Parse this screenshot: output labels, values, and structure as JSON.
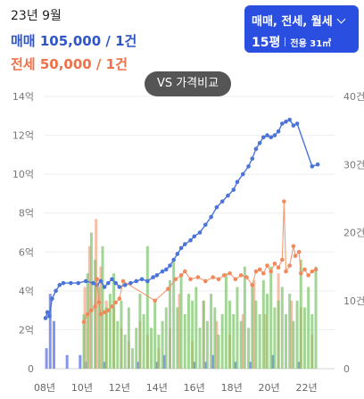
{
  "header": {
    "date": "23년 9월",
    "sale_price": "매매 105,000 / 1건",
    "jeonse_price": "전세 50,000 / 1건"
  },
  "type_selector": {
    "label": "매매, 전세, 월세",
    "pyeong": "15평",
    "area": "전용 31㎡"
  },
  "compare_button": "VS 가격비교",
  "colors": {
    "sale": "#4a74d8",
    "jeonse": "#f08a5d",
    "volume_green": "#7cc46a",
    "volume_orange": "#f4a98a",
    "volume_blue": "#6f82e8",
    "selector_bg": "#2a4ee0"
  },
  "icons": {
    "dropdown": "chevron-down-icon"
  },
  "chart_data": {
    "type": "line",
    "x_tick_labels": [
      "08년",
      "10년",
      "12년",
      "14년",
      "16년",
      "18년",
      "20년",
      "22년"
    ],
    "y_left_tick_labels": [
      "0",
      "2억",
      "4억",
      "6억",
      "8억",
      "10억",
      "12억",
      "14억"
    ],
    "y_right_tick_labels": [
      "0",
      "10건",
      "20건",
      "30건",
      "40건"
    ],
    "y_left_range": [
      0,
      14
    ],
    "y_right_range": [
      0,
      40
    ],
    "x_range": [
      2008,
      2023.5
    ],
    "y_left_unit": "억",
    "grid": "horizontal",
    "series": [
      {
        "role": "sale",
        "points": [
          [
            2008.05,
            2.6
          ],
          [
            2008.15,
            2.9
          ],
          [
            2008.25,
            2.7
          ],
          [
            2008.4,
            3.6
          ],
          [
            2008.6,
            4.0
          ],
          [
            2008.8,
            4.3
          ],
          [
            2009.0,
            4.4
          ],
          [
            2009.4,
            4.4
          ],
          [
            2009.8,
            4.4
          ],
          [
            2010.2,
            4.5
          ],
          [
            2010.6,
            4.4
          ],
          [
            2010.8,
            4.3
          ],
          [
            2011.0,
            4.5
          ],
          [
            2011.2,
            4.2
          ],
          [
            2011.4,
            4.4
          ],
          [
            2011.6,
            4.6
          ],
          [
            2011.8,
            4.4
          ],
          [
            2012.0,
            4.2
          ],
          [
            2012.3,
            4.3
          ],
          [
            2012.6,
            4.4
          ],
          [
            2012.9,
            4.5
          ],
          [
            2013.2,
            4.6
          ],
          [
            2013.5,
            4.5
          ],
          [
            2013.8,
            4.7
          ],
          [
            2014.0,
            4.8
          ],
          [
            2014.3,
            5.0
          ],
          [
            2014.5,
            5.1
          ],
          [
            2014.7,
            5.3
          ],
          [
            2014.9,
            5.6
          ],
          [
            2015.1,
            5.9
          ],
          [
            2015.3,
            6.2
          ],
          [
            2015.5,
            6.4
          ],
          [
            2015.8,
            6.6
          ],
          [
            2016.0,
            6.8
          ],
          [
            2016.3,
            7.0
          ],
          [
            2016.6,
            7.4
          ],
          [
            2016.9,
            7.8
          ],
          [
            2017.2,
            8.3
          ],
          [
            2017.5,
            8.6
          ],
          [
            2017.8,
            8.9
          ],
          [
            2018.1,
            9.2
          ],
          [
            2018.3,
            9.6
          ],
          [
            2018.6,
            10.0
          ],
          [
            2018.9,
            10.4
          ],
          [
            2019.1,
            10.8
          ],
          [
            2019.3,
            11.3
          ],
          [
            2019.5,
            11.6
          ],
          [
            2019.7,
            11.9
          ],
          [
            2019.9,
            12.0
          ],
          [
            2020.1,
            11.9
          ],
          [
            2020.3,
            12.0
          ],
          [
            2020.5,
            12.2
          ],
          [
            2020.7,
            12.6
          ],
          [
            2020.9,
            12.7
          ],
          [
            2021.1,
            12.8
          ],
          [
            2021.3,
            12.5
          ],
          [
            2021.5,
            12.6
          ],
          [
            2022.3,
            10.4
          ],
          [
            2022.6,
            10.5
          ]
        ]
      },
      {
        "role": "jeonse",
        "points": [
          [
            2010.1,
            2.4
          ],
          [
            2010.3,
            2.8
          ],
          [
            2010.5,
            3.0
          ],
          [
            2010.7,
            3.2
          ],
          [
            2010.8,
            4.6
          ],
          [
            2010.9,
            3.4
          ],
          [
            2011.0,
            2.8
          ],
          [
            2011.2,
            2.9
          ],
          [
            2011.4,
            3.0
          ],
          [
            2011.6,
            3.2
          ],
          [
            2011.8,
            3.4
          ],
          [
            2012.0,
            3.6
          ],
          [
            2012.2,
            4.5
          ],
          [
            2013.9,
            3.5
          ],
          [
            2014.6,
            4.1
          ],
          [
            2015.0,
            4.6
          ],
          [
            2015.3,
            4.8
          ],
          [
            2015.5,
            5.0
          ],
          [
            2015.8,
            4.6
          ],
          [
            2016.2,
            4.7
          ],
          [
            2016.6,
            4.5
          ],
          [
            2017.0,
            4.7
          ],
          [
            2017.3,
            4.6
          ],
          [
            2017.6,
            4.8
          ],
          [
            2017.9,
            4.9
          ],
          [
            2018.2,
            4.6
          ],
          [
            2018.5,
            4.8
          ],
          [
            2018.8,
            4.7
          ],
          [
            2019.1,
            4.3
          ],
          [
            2019.3,
            5.0
          ],
          [
            2019.5,
            5.1
          ],
          [
            2019.7,
            4.9
          ],
          [
            2019.9,
            5.3
          ],
          [
            2020.1,
            5.0
          ],
          [
            2020.3,
            5.4
          ],
          [
            2020.5,
            5.2
          ],
          [
            2020.7,
            5.6
          ],
          [
            2020.8,
            8.6
          ],
          [
            2020.9,
            5.0
          ],
          [
            2021.1,
            5.3
          ],
          [
            2021.3,
            6.3
          ],
          [
            2021.4,
            5.8
          ],
          [
            2021.6,
            6.0
          ],
          [
            2021.7,
            4.9
          ],
          [
            2021.9,
            5.1
          ],
          [
            2022.1,
            4.8
          ],
          [
            2022.3,
            5.0
          ],
          [
            2022.5,
            5.1
          ]
        ]
      }
    ],
    "volume": [
      {
        "role": "sale_volume",
        "bars": [
          [
            2008.1,
            3
          ],
          [
            2008.3,
            11
          ],
          [
            2008.5,
            7
          ],
          [
            2009.2,
            2
          ],
          [
            2009.9,
            2
          ],
          [
            2010.2,
            1
          ],
          [
            2011.2,
            1
          ],
          [
            2013.0,
            1
          ],
          [
            2014.0,
            1
          ],
          [
            2014.4,
            2
          ],
          [
            2016.0,
            1
          ],
          [
            2016.6,
            1
          ],
          [
            2017.0,
            2
          ],
          [
            2018.2,
            1
          ],
          [
            2019.0,
            1
          ],
          [
            2020.2,
            2
          ],
          [
            2021.6,
            1
          ]
        ]
      },
      {
        "role": "jeonse_volume",
        "bars": [
          [
            2010.15,
            12
          ],
          [
            2010.4,
            18
          ],
          [
            2010.75,
            22
          ],
          [
            2011.0,
            15
          ],
          [
            2011.3,
            10
          ],
          [
            2011.7,
            9
          ],
          [
            2012.1,
            6
          ],
          [
            2012.5,
            4
          ],
          [
            2013.1,
            7
          ],
          [
            2013.5,
            5
          ],
          [
            2014.1,
            3
          ],
          [
            2014.7,
            6
          ],
          [
            2015.2,
            11
          ],
          [
            2015.9,
            4
          ],
          [
            2016.5,
            10
          ],
          [
            2017.2,
            7
          ],
          [
            2017.9,
            5
          ],
          [
            2018.6,
            8
          ],
          [
            2019.2,
            13
          ],
          [
            2019.8,
            8
          ],
          [
            2020.5,
            14
          ],
          [
            2021.2,
            10
          ],
          [
            2021.7,
            9
          ],
          [
            2022.3,
            5
          ]
        ]
      },
      {
        "role": "monthly_volume",
        "bars": [
          [
            2010.1,
            8
          ],
          [
            2010.3,
            14
          ],
          [
            2010.5,
            20
          ],
          [
            2010.7,
            16
          ],
          [
            2010.9,
            12
          ],
          [
            2011.1,
            18
          ],
          [
            2011.3,
            9
          ],
          [
            2011.5,
            11
          ],
          [
            2011.7,
            14
          ],
          [
            2011.9,
            7
          ],
          [
            2012.1,
            10
          ],
          [
            2012.3,
            5
          ],
          [
            2012.5,
            9
          ],
          [
            2012.7,
            3
          ],
          [
            2012.9,
            6
          ],
          [
            2013.1,
            11
          ],
          [
            2013.3,
            8
          ],
          [
            2013.5,
            18
          ],
          [
            2013.7,
            6
          ],
          [
            2013.9,
            10
          ],
          [
            2014.1,
            5
          ],
          [
            2014.3,
            7
          ],
          [
            2014.5,
            9
          ],
          [
            2014.7,
            13
          ],
          [
            2014.9,
            16
          ],
          [
            2015.1,
            9
          ],
          [
            2015.3,
            14
          ],
          [
            2015.5,
            8
          ],
          [
            2015.7,
            11
          ],
          [
            2015.9,
            10
          ],
          [
            2016.1,
            12
          ],
          [
            2016.3,
            6
          ],
          [
            2016.5,
            10
          ],
          [
            2016.7,
            7
          ],
          [
            2016.9,
            11
          ],
          [
            2017.1,
            9
          ],
          [
            2017.3,
            5
          ],
          [
            2017.5,
            8
          ],
          [
            2017.7,
            14
          ],
          [
            2017.9,
            10
          ],
          [
            2018.1,
            8
          ],
          [
            2018.3,
            12
          ],
          [
            2018.5,
            7
          ],
          [
            2018.7,
            15
          ],
          [
            2018.9,
            6
          ],
          [
            2019.1,
            12
          ],
          [
            2019.3,
            10
          ],
          [
            2019.5,
            8
          ],
          [
            2019.7,
            13
          ],
          [
            2019.9,
            11
          ],
          [
            2020.1,
            15
          ],
          [
            2020.3,
            9
          ],
          [
            2020.5,
            10
          ],
          [
            2020.7,
            12
          ],
          [
            2020.9,
            8
          ],
          [
            2021.1,
            11
          ],
          [
            2021.3,
            7
          ],
          [
            2021.5,
            10
          ],
          [
            2021.7,
            16
          ],
          [
            2021.9,
            9
          ],
          [
            2022.1,
            12
          ],
          [
            2022.3,
            8
          ],
          [
            2022.5,
            15
          ]
        ]
      }
    ]
  }
}
